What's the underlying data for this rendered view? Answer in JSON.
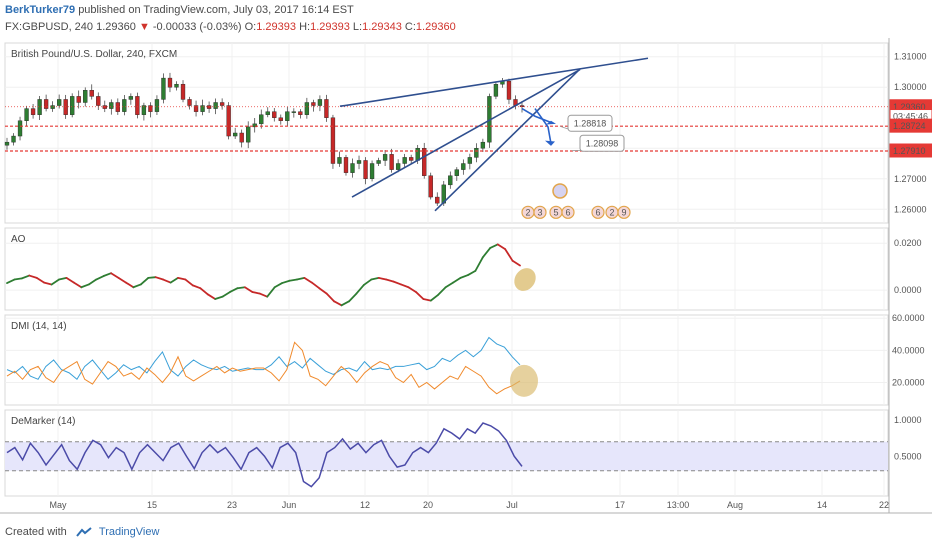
{
  "header": {
    "author": "BerkTurker79",
    "published_text": "published on TradingView.com, July 03, 2017 16:14 EST",
    "symbol": "FX:GBPUSD, 240",
    "last": "1.29360",
    "change": "-0.00033 (-0.03%)",
    "open_label": "O:",
    "open": "1.29393",
    "high_label": "H:",
    "high": "1.29393",
    "low_label": "L:",
    "low": "1.29343",
    "close_label": "C:",
    "close": "1.29360"
  },
  "footer": {
    "created_with": "Created with",
    "brand": "TradingView"
  },
  "colors": {
    "up": "#2e7d32",
    "down": "#c62828",
    "blue_line": "#2a62c9",
    "trend_line": "#2f4f8f",
    "dmi_plus": "#3aa0d8",
    "dmi_minus": "#f08a2c",
    "demarker": "#4b4ba8",
    "level": "#e53935",
    "highlight": "#d9b96a"
  },
  "chart_data": [
    {
      "type": "candlestick",
      "title": "British Pound/U.S. Dollar, 240, FXCM",
      "y_ticks": [
        "1.31000",
        "1.30000",
        "1.28000",
        "1.27000",
        "1.26000"
      ],
      "ylim": [
        1.2555,
        1.3145
      ],
      "x_ticks": [
        "May",
        "15",
        "23",
        "Jun",
        "12",
        "20",
        "Jul",
        "17",
        "13:00",
        "Aug",
        "14",
        "22"
      ],
      "price_levels": [
        {
          "label": "1.29360",
          "value": 1.2936
        },
        {
          "label": "03:45:46",
          "value": 1.2904
        },
        {
          "label": "1.28724",
          "value": 1.28724
        },
        {
          "label": "1.27910",
          "value": 1.2791
        }
      ],
      "annotations": [
        {
          "label": "1.28818",
          "value": 1.28818
        },
        {
          "label": "1.28098",
          "value": 1.28098
        }
      ],
      "event_markers": [
        "2",
        "3",
        "5",
        "6",
        "6",
        "2",
        "9"
      ],
      "close_path": [
        1.282,
        1.284,
        1.289,
        1.293,
        1.291,
        1.296,
        1.293,
        1.294,
        1.296,
        1.291,
        1.297,
        1.295,
        1.299,
        1.297,
        1.294,
        1.293,
        1.295,
        1.292,
        1.296,
        1.297,
        1.291,
        1.294,
        1.292,
        1.296,
        1.303,
        1.3,
        1.301,
        1.296,
        1.294,
        1.292,
        1.294,
        1.293,
        1.295,
        1.294,
        1.284,
        1.285,
        1.282,
        1.287,
        1.288,
        1.291,
        1.292,
        1.29,
        1.289,
        1.292,
        1.292,
        1.291,
        1.295,
        1.294,
        1.296,
        1.29,
        1.275,
        1.277,
        1.272,
        1.275,
        1.276,
        1.27,
        1.275,
        1.276,
        1.278,
        1.273,
        1.275,
        1.277,
        1.276,
        1.28,
        1.271,
        1.264,
        1.262,
        1.268,
        1.271,
        1.273,
        1.275,
        1.277,
        1.28,
        1.282,
        1.297,
        1.301,
        1.302,
        1.296,
        1.294,
        1.2936
      ]
    },
    {
      "type": "line",
      "title": "AO",
      "y_ticks": [
        "0.0200",
        "0.0000"
      ],
      "ylim": [
        -0.0085,
        0.0265
      ],
      "values": [
        0.003,
        0.0045,
        0.005,
        0.0062,
        0.0052,
        0.0032,
        0.0024,
        0.0045,
        0.0052,
        0.0032,
        0.0012,
        0.0024,
        0.0045,
        0.006,
        0.0072,
        0.0052,
        0.0032,
        0.0012,
        0.0024,
        0.0052,
        0.0055,
        0.0045,
        0.0032,
        0.0052,
        0.0045,
        0.002,
        0.0008,
        -0.0018,
        -0.0038,
        -0.0028,
        -0.0008,
        0.0008,
        0.0012,
        -0.0008,
        -0.0015,
        -0.0028,
        0.0012,
        0.003,
        0.004,
        0.0045,
        0.0052,
        0.0032,
        0.0008,
        -0.0015,
        -0.0048,
        -0.0065,
        -0.0048,
        -0.0015,
        0.0022,
        0.0045,
        0.0052,
        0.0045,
        0.0036,
        0.0024,
        0.0012,
        -0.0008,
        -0.0038,
        -0.0045,
        -0.002,
        0.0012,
        0.0032,
        0.0052,
        0.0064,
        0.0082,
        0.014,
        0.018,
        0.0195,
        0.0175,
        0.0125,
        0.0105
      ]
    },
    {
      "type": "line",
      "title": "DMI (14, 14)",
      "y_ticks": [
        "60.0000",
        "40.0000",
        "20.0000"
      ],
      "ylim": [
        6,
        62
      ],
      "series": [
        {
          "values": [
            28,
            26,
            30,
            24,
            22,
            30,
            34,
            28,
            26,
            22,
            30,
            34,
            28,
            22,
            26,
            31,
            28,
            30,
            26,
            33,
            39,
            28,
            24,
            30,
            34,
            31,
            29,
            28,
            30,
            27,
            28,
            29,
            28,
            28,
            31,
            36,
            30,
            33,
            29,
            35,
            31,
            27,
            25,
            28,
            29,
            27,
            33,
            28,
            29,
            28,
            30,
            30,
            31,
            32,
            28,
            30,
            35,
            33,
            37,
            40,
            36,
            40,
            48,
            44,
            42,
            36,
            31
          ]
        },
        {
          "values": [
            24,
            27,
            22,
            28,
            30,
            23,
            20,
            27,
            30,
            33,
            22,
            19,
            26,
            33,
            30,
            24,
            26,
            22,
            29,
            25,
            20,
            26,
            36,
            24,
            21,
            24,
            27,
            30,
            26,
            29,
            27,
            28,
            29,
            29,
            26,
            21,
            28,
            45,
            40,
            24,
            22,
            18,
            24,
            30,
            26,
            20,
            26,
            30,
            33,
            31,
            23,
            20,
            25,
            17,
            20,
            16,
            20,
            24,
            22,
            30,
            27,
            24,
            17,
            13,
            16,
            18,
            21
          ]
        }
      ]
    },
    {
      "type": "line",
      "title": "DeMarker (14)",
      "y_ticks": [
        "1.0000",
        "0.5000"
      ],
      "ylim": [
        -0.05,
        1.14
      ],
      "band": [
        0.3,
        0.7
      ],
      "values": [
        0.55,
        0.62,
        0.45,
        0.68,
        0.55,
        0.38,
        0.52,
        0.66,
        0.44,
        0.32,
        0.55,
        0.72,
        0.66,
        0.48,
        0.62,
        0.55,
        0.32,
        0.55,
        0.66,
        0.55,
        0.44,
        0.62,
        0.68,
        0.5,
        0.33,
        0.55,
        0.66,
        0.55,
        0.62,
        0.48,
        0.32,
        0.55,
        0.62,
        0.5,
        0.34,
        0.62,
        0.68,
        0.55,
        0.15,
        0.08,
        0.2,
        0.55,
        0.62,
        0.74,
        0.6,
        0.68,
        0.55,
        0.66,
        0.72,
        0.5,
        0.35,
        0.38,
        0.55,
        0.62,
        0.55,
        0.68,
        0.88,
        0.82,
        0.74,
        0.88,
        0.82,
        0.96,
        0.92,
        0.85,
        0.72,
        0.5,
        0.36
      ]
    }
  ]
}
